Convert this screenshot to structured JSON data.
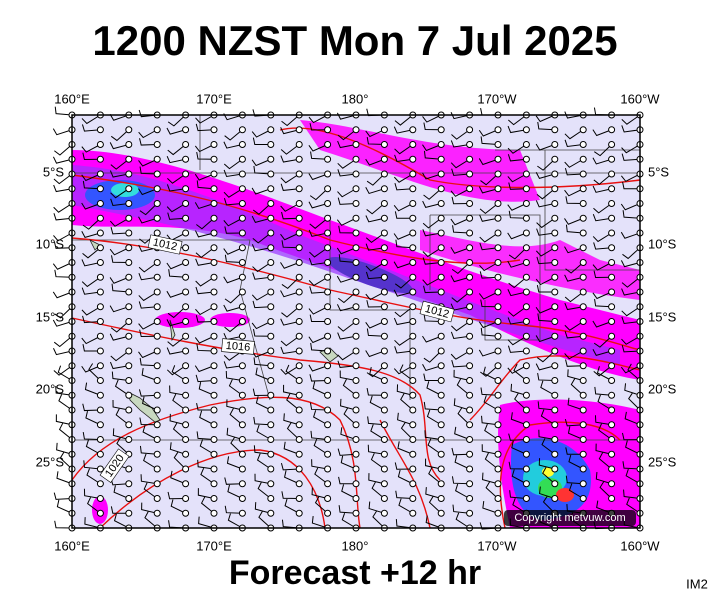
{
  "title": "1200 NZST Mon 7 Jul 2025",
  "footer": "Forecast +12 hr",
  "image_id": "IM2",
  "copyright": "Copyright metvuw.com",
  "longitude_labels": [
    "160°E",
    "170°E",
    "180°",
    "170°W",
    "160°W"
  ],
  "latitude_labels": [
    "5°S",
    "10°S",
    "15°S",
    "20°S",
    "25°S"
  ],
  "isobar_labels": [
    "1012",
    "1012",
    "1016",
    "1020"
  ]
}
